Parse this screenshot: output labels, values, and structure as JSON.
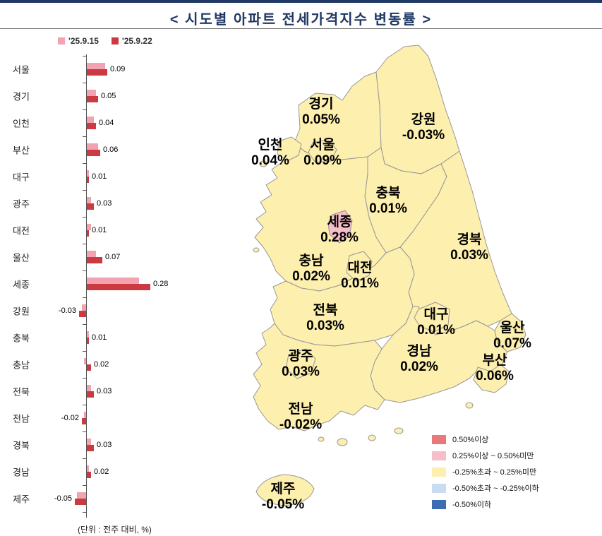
{
  "title": "<  시도별  아파트  전세가격지수  변동률  >",
  "unit_note": "(단위 : 전주 대비, %)",
  "chart_data": {
    "type": "bar",
    "orientation": "horizontal",
    "title": "시도별 아파트 전세가격지수 변동률",
    "xlabel": "",
    "ylabel": "",
    "xlim": [
      -0.08,
      0.32
    ],
    "grid": false,
    "legend_position": "top",
    "categories": [
      "서울",
      "경기",
      "인천",
      "부산",
      "대구",
      "광주",
      "대전",
      "울산",
      "세종",
      "강원",
      "충북",
      "충남",
      "전북",
      "전남",
      "경북",
      "경남",
      "제주"
    ],
    "series": [
      {
        "name": "'25.9.15",
        "color": "#f2a2b0",
        "values": [
          0.08,
          0.04,
          0.03,
          0.05,
          0.01,
          0.02,
          0.02,
          0.04,
          0.23,
          -0.02,
          0.01,
          -0.01,
          0.02,
          -0.01,
          0.02,
          0.01,
          -0.04
        ]
      },
      {
        "name": "'25.9.22",
        "color": "#cb3a41",
        "values": [
          0.09,
          0.05,
          0.04,
          0.06,
          0.01,
          0.03,
          0.01,
          0.07,
          0.28,
          -0.03,
          0.01,
          0.02,
          0.03,
          -0.02,
          0.03,
          0.02,
          -0.05
        ]
      }
    ],
    "value_labels": [
      "0.09",
      "0.05",
      "0.04",
      "0.06",
      "0.01",
      "0.03",
      "0.01",
      "0.07",
      "0.28",
      "-0.03",
      "0.01",
      "0.02",
      "0.03",
      "-0.02",
      "0.03",
      "0.02",
      "-0.05"
    ]
  },
  "map": {
    "regions": [
      {
        "id": "gyeonggi",
        "name": "경기",
        "value": 0.05,
        "label": "0.05%"
      },
      {
        "id": "gangwon",
        "name": "강원",
        "value": -0.03,
        "label": "-0.03%"
      },
      {
        "id": "incheon",
        "name": "인천",
        "value": 0.04,
        "label": "0.04%"
      },
      {
        "id": "seoul",
        "name": "서울",
        "value": 0.09,
        "label": "0.09%"
      },
      {
        "id": "chungbuk",
        "name": "충북",
        "value": 0.01,
        "label": "0.01%"
      },
      {
        "id": "sejong",
        "name": "세종",
        "value": 0.28,
        "label": "0.28%"
      },
      {
        "id": "gyeongbuk",
        "name": "경북",
        "value": 0.03,
        "label": "0.03%"
      },
      {
        "id": "chungnam",
        "name": "충남",
        "value": 0.02,
        "label": "0.02%"
      },
      {
        "id": "daejeon",
        "name": "대전",
        "value": 0.01,
        "label": "0.01%"
      },
      {
        "id": "jeonbuk",
        "name": "전북",
        "value": 0.03,
        "label": "0.03%"
      },
      {
        "id": "daegu",
        "name": "대구",
        "value": 0.01,
        "label": "0.01%"
      },
      {
        "id": "ulsan",
        "name": "울산",
        "value": 0.07,
        "label": "0.07%"
      },
      {
        "id": "gwangju",
        "name": "광주",
        "value": 0.03,
        "label": "0.03%"
      },
      {
        "id": "gyeongnam",
        "name": "경남",
        "value": 0.02,
        "label": "0.02%"
      },
      {
        "id": "busan",
        "name": "부산",
        "value": 0.06,
        "label": "0.06%"
      },
      {
        "id": "jeonnam",
        "name": "전남",
        "value": -0.02,
        "label": "-0.02%"
      },
      {
        "id": "jeju",
        "name": "제주",
        "value": -0.05,
        "label": "-0.05%"
      }
    ],
    "legend": [
      {
        "color": "#e9787a",
        "label": "0.50%이상"
      },
      {
        "color": "#f6bec9",
        "label": "0.25%이상 ~ 0.50%미만"
      },
      {
        "color": "#fdefae",
        "label": "-0.25%초과 ~ 0.25%미만"
      },
      {
        "color": "#c9dcf4",
        "label": "-0.50%초과 ~ -0.25%이하"
      },
      {
        "color": "#3d6cb3",
        "label": "-0.50%이하"
      }
    ]
  }
}
